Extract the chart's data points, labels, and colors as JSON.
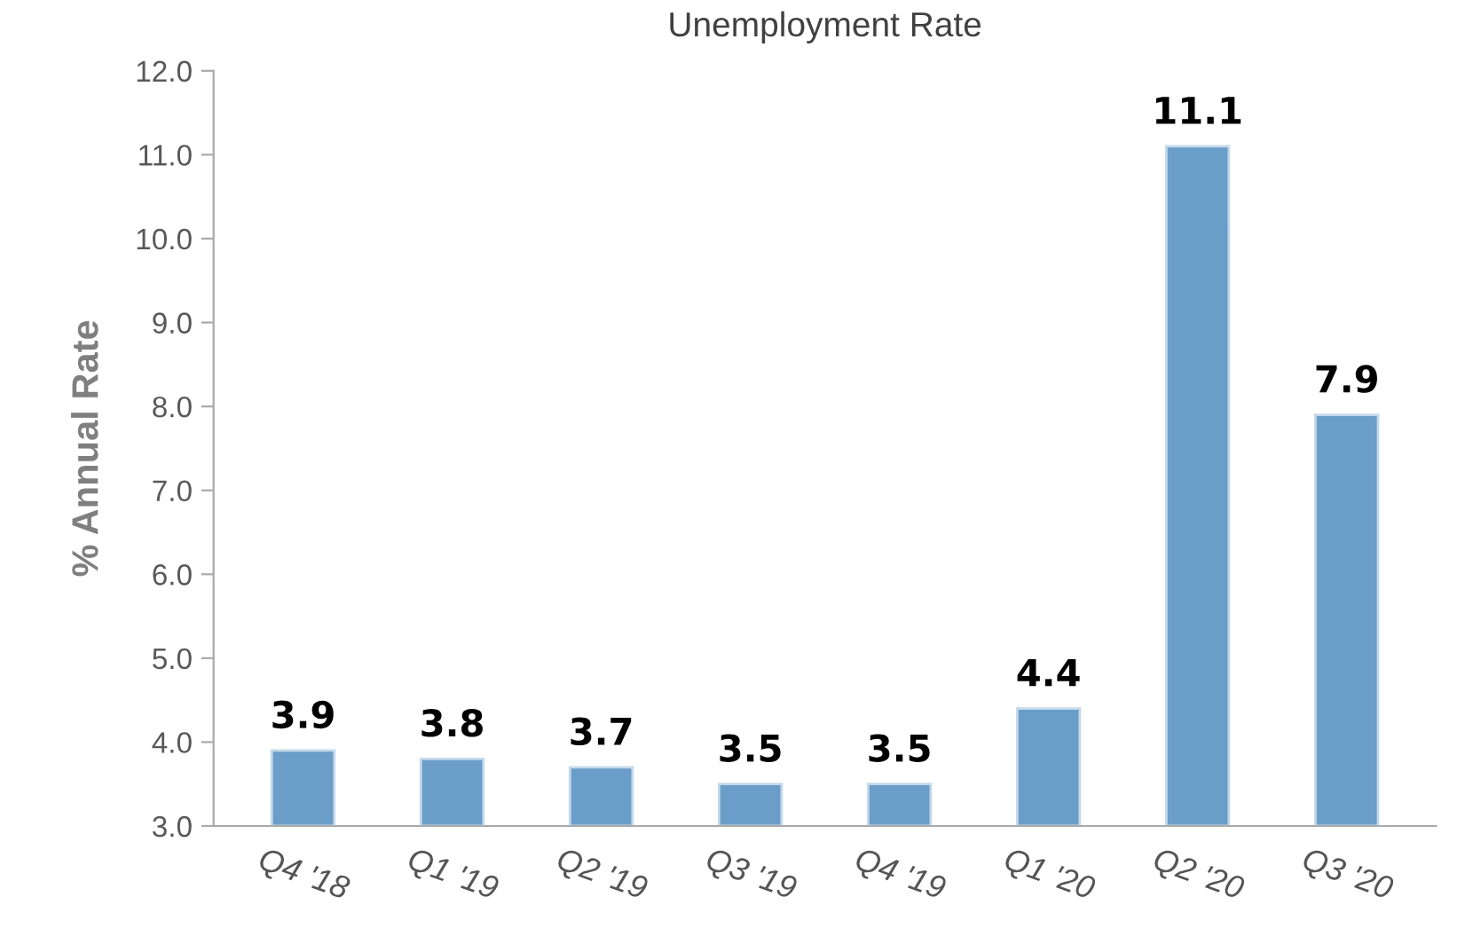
{
  "chart_data": {
    "type": "bar",
    "title": "Unemployment Rate",
    "ylabel": "% Annual Rate",
    "categories": [
      "Q4 '18",
      "Q1 '19",
      "Q2 '19",
      "Q3 '19",
      "Q4 '19",
      "Q1 '20",
      "Q2 '20",
      "Q3 '20"
    ],
    "values": [
      3.9,
      3.8,
      3.7,
      3.5,
      3.5,
      4.4,
      11.1,
      7.9
    ],
    "color": "#6a9ec9",
    "ylim": [
      3.0,
      12.0
    ],
    "yticks": [
      {
        "value": 3,
        "label": "3.0"
      },
      {
        "value": 4,
        "label": "4.0"
      },
      {
        "value": 5,
        "label": "5.0"
      },
      {
        "value": 6,
        "label": "6.0"
      },
      {
        "value": 7,
        "label": "7.0"
      },
      {
        "value": 8,
        "label": "8.0"
      },
      {
        "value": 9,
        "label": "9.0"
      },
      {
        "value": 10,
        "label": "10.0"
      },
      {
        "value": 11,
        "label": "11.0"
      },
      {
        "value": 12,
        "label": "12.0"
      }
    ],
    "grid": false,
    "legend": false,
    "data_labels": true
  }
}
